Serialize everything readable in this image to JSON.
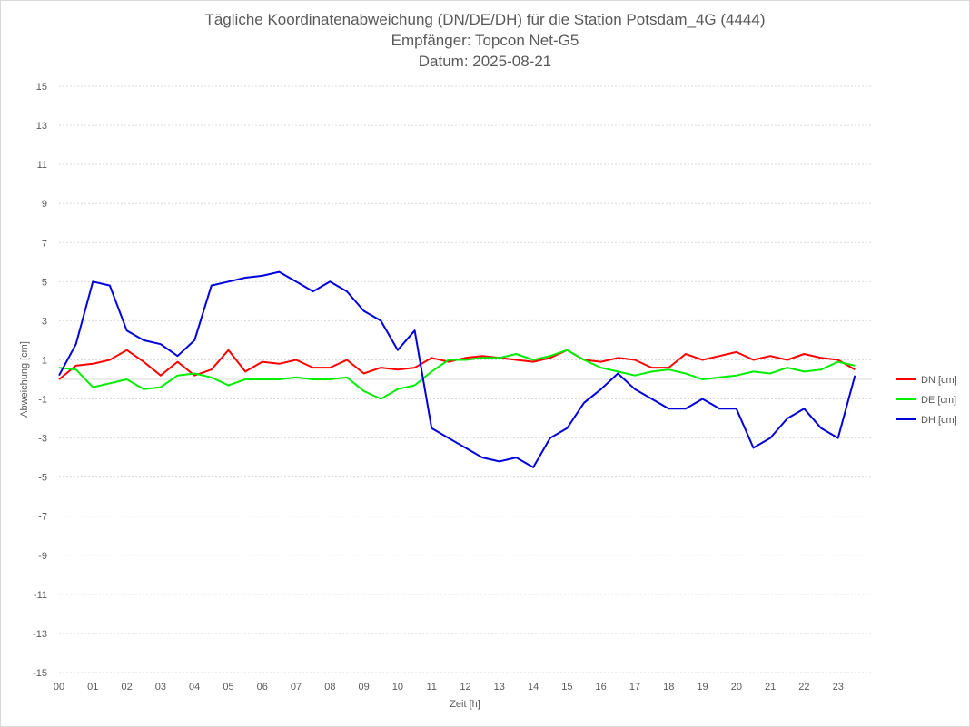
{
  "chart_data": {
    "type": "line",
    "title_lines": [
      "Tägliche Koordinatenabweichung (DN/DE/DH) für die Station Potsdam_4G (4444)",
      "Empfänger: Topcon Net-G5",
      "Datum: 2025-08-21"
    ],
    "xlabel": "Zeit [h]",
    "ylabel": "Abweichung [cm]",
    "xlim": [
      0,
      24
    ],
    "ylim": [
      -15,
      15
    ],
    "x_ticks": [
      "00",
      "01",
      "02",
      "03",
      "04",
      "05",
      "06",
      "07",
      "08",
      "09",
      "10",
      "11",
      "12",
      "13",
      "14",
      "15",
      "16",
      "17",
      "18",
      "19",
      "20",
      "21",
      "22",
      "23"
    ],
    "y_ticks": [
      "15",
      "13",
      "11",
      "9",
      "7",
      "5",
      "3",
      "1",
      "-1",
      "-3",
      "-5",
      "-7",
      "-9",
      "-11",
      "-13",
      "-15"
    ],
    "grid": "horizontal-dotted",
    "legend_position": "right",
    "series": [
      {
        "name": "DN [cm]",
        "color": "#ff0000",
        "x": [
          0,
          0.5,
          1,
          1.5,
          2,
          2.5,
          3,
          3.5,
          4,
          4.5,
          5,
          5.5,
          6,
          6.5,
          7,
          7.5,
          8,
          8.5,
          9,
          9.5,
          10,
          10.5,
          11,
          11.5,
          12,
          12.5,
          13,
          13.5,
          14,
          14.5,
          15,
          15.5,
          16,
          16.5,
          17,
          17.5,
          18,
          18.5,
          19,
          19.5,
          20,
          20.5,
          21,
          21.5,
          22,
          22.5,
          23,
          23.5
        ],
        "values": [
          0.0,
          0.7,
          0.8,
          1.0,
          1.5,
          0.9,
          0.2,
          0.9,
          0.2,
          0.5,
          1.5,
          0.4,
          0.9,
          0.8,
          1.0,
          0.6,
          0.6,
          1.0,
          0.3,
          0.6,
          0.5,
          0.6,
          1.1,
          0.9,
          1.1,
          1.2,
          1.1,
          1.0,
          0.9,
          1.1,
          1.5,
          1.0,
          0.9,
          1.1,
          1.0,
          0.6,
          0.6,
          1.3,
          1.0,
          1.2,
          1.4,
          1.0,
          1.2,
          1.0,
          1.3,
          1.1,
          1.0,
          0.5
        ]
      },
      {
        "name": "DE [cm]",
        "color": "#00ee00",
        "x": [
          0,
          0.5,
          1,
          1.5,
          2,
          2.5,
          3,
          3.5,
          4,
          4.5,
          5,
          5.5,
          6,
          6.5,
          7,
          7.5,
          8,
          8.5,
          9,
          9.5,
          10,
          10.5,
          11,
          11.5,
          12,
          12.5,
          13,
          13.5,
          14,
          14.5,
          15,
          15.5,
          16,
          16.5,
          17,
          17.5,
          18,
          18.5,
          19,
          19.5,
          20,
          20.5,
          21,
          21.5,
          22,
          22.5,
          23,
          23.5
        ],
        "values": [
          0.6,
          0.5,
          -0.4,
          -0.2,
          0.0,
          -0.5,
          -0.4,
          0.2,
          0.3,
          0.1,
          -0.3,
          0.0,
          0.0,
          0.0,
          0.1,
          0.0,
          0.0,
          0.1,
          -0.6,
          -1.0,
          -0.5,
          -0.3,
          0.4,
          1.0,
          1.0,
          1.1,
          1.1,
          1.3,
          1.0,
          1.2,
          1.5,
          1.0,
          0.6,
          0.4,
          0.2,
          0.4,
          0.5,
          0.3,
          0.0,
          0.1,
          0.2,
          0.4,
          0.3,
          0.6,
          0.4,
          0.5,
          0.9,
          0.7
        ]
      },
      {
        "name": "DH [cm]",
        "color": "#0000dd",
        "x": [
          0,
          0.5,
          1,
          1.5,
          2,
          2.5,
          3,
          3.5,
          4,
          4.5,
          5,
          5.5,
          6,
          6.5,
          7,
          7.5,
          8,
          8.5,
          9,
          9.5,
          10,
          10.5,
          11,
          11.5,
          12,
          12.5,
          13,
          13.5,
          14,
          14.5,
          15,
          15.5,
          16,
          16.5,
          17,
          17.5,
          18,
          18.5,
          19,
          19.5,
          20,
          20.5,
          21,
          21.5,
          22,
          22.5,
          23,
          23.5
        ],
        "values": [
          0.2,
          1.8,
          5.0,
          4.8,
          2.5,
          2.0,
          1.8,
          1.2,
          2.0,
          4.8,
          5.0,
          5.2,
          5.3,
          5.5,
          5.0,
          4.5,
          5.0,
          4.5,
          3.5,
          3.0,
          1.5,
          2.5,
          -2.5,
          -3.0,
          -3.5,
          -4.0,
          -4.2,
          -4.0,
          -4.5,
          -3.0,
          -2.5,
          -1.2,
          -0.5,
          0.3,
          -0.5,
          -1.0,
          -1.5,
          -1.5,
          -1.0,
          -1.5,
          -1.5,
          -3.5,
          -3.0,
          -2.0,
          -1.5,
          -2.5,
          -3.0,
          0.2
        ]
      }
    ]
  }
}
